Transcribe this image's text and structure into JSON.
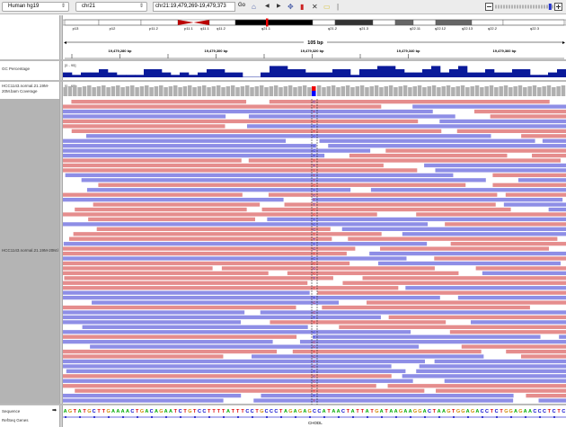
{
  "toolbar": {
    "genome": "Human hg19",
    "chromosome": "chr21",
    "locus": "chr21:19,479,269-19,479,373",
    "go_label": "Go",
    "zoom_level_fraction": 0.95
  },
  "ideogram": {
    "bands": [
      "p13",
      "p12",
      "p11.2",
      "p11.1",
      "q11.1",
      "q11.2",
      "q21.1",
      "q21.2",
      "q21.3",
      "q22.11",
      "q22.12",
      "q22.13",
      "q22.2",
      "q22.3"
    ]
  },
  "ruler": {
    "span_label": "105 bp",
    "ticks": [
      "19,479,280 bp",
      "19,479,300 bp",
      "19,479,320 bp",
      "19,479,340 bp",
      "19,479,360 bp"
    ]
  },
  "tracks": {
    "gc": {
      "name": "GC Percentage",
      "range": "[0 - 95]",
      "color": "#0a1a9a"
    },
    "coverage": {
      "name": "HCC1143.normal.21.19M-20M.bam Coverage",
      "range": "[0 - 65]",
      "color": "#b0b0b0"
    },
    "alignments": {
      "name": "HCC1143.normal.21.19M-20M.bam",
      "forward_color": "#e58d8d",
      "reverse_color": "#8e8ee6"
    },
    "sequence": {
      "name": "Sequence",
      "bases": "AGTATGCTTGAAAACTGACAGAATCTGTCCTTTTATTTCCTGCCCTAGAGAGCCATAACTATTATGATAAGAAGGACTAAGTGGAGACCTCTGGAGAACCCTCTC"
    },
    "refseq": {
      "name": "RefSeq Genes",
      "gene": "CHODL"
    }
  }
}
